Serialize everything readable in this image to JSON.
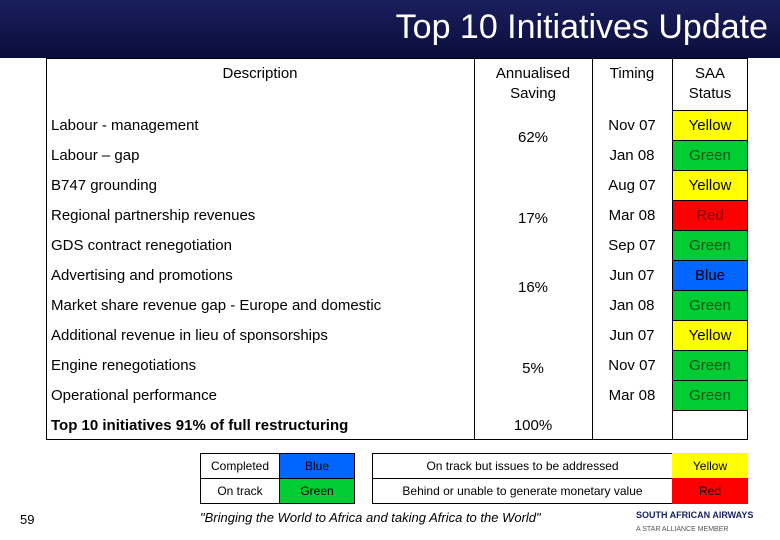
{
  "header": {
    "title": "Top 10 Initiatives Update"
  },
  "table": {
    "columns": [
      "Description",
      "Annualised Saving",
      "Timing",
      "SAA Status"
    ],
    "rows": [
      {
        "description": "Labour - management",
        "saving": "62%",
        "timing": "Nov 07",
        "status": "Yellow",
        "status_color": "#ffff00"
      },
      {
        "description": "Labour – gap",
        "timing": "Jan 08",
        "status": "Green",
        "status_color": "#00cc33"
      },
      {
        "description": "B747 grounding",
        "timing": "Aug 07",
        "status": "Yellow",
        "status_color": "#ffff00"
      },
      {
        "description": "Regional partnership revenues",
        "saving": "17%",
        "timing": "Mar 08",
        "status": "Red",
        "status_color": "#ff0000"
      },
      {
        "description": "GDS contract renegotiation",
        "timing": "Sep 07",
        "status": "Green",
        "status_color": "#00cc33"
      },
      {
        "description": "Advertising and promotions",
        "saving": "16%",
        "timing": "Jun 07",
        "status": "Blue",
        "status_color": "#0066ff"
      },
      {
        "description": "Market share revenue gap - Europe and domestic",
        "timing": "Jan 08",
        "status": "Green",
        "status_color": "#00cc33"
      },
      {
        "description": "Additional revenue in lieu of sponsorships",
        "timing": "Jun 07",
        "status": "Yellow",
        "status_color": "#ffff00"
      },
      {
        "description": "Engine renegotiations",
        "saving": "5%",
        "timing": "Nov 07",
        "status": "Green",
        "status_color": "#00cc33"
      },
      {
        "description": "Operational performance",
        "timing": "Mar 08",
        "status": "Green",
        "status_color": "#00cc33"
      }
    ],
    "total": {
      "description": "Top 10 initiatives 91% of full restructuring",
      "saving": "100%"
    }
  },
  "legend": {
    "left": [
      {
        "label": "Completed",
        "status": "Blue",
        "color": "#0066ff"
      },
      {
        "label": "On track",
        "status": "Green",
        "color": "#00cc33"
      }
    ],
    "right": [
      {
        "label": "On track but issues to be addressed",
        "status": "Yellow",
        "color": "#ffff00"
      },
      {
        "label": "Behind or unable to generate monetary value",
        "status": "Red",
        "color": "#ff0000"
      }
    ]
  },
  "footer": {
    "page": "59",
    "quote": "\"Bringing the World to Africa and taking Africa to the World\"",
    "brand": "SOUTH AFRICAN AIRWAYS",
    "tagline": "A STAR ALLIANCE MEMBER"
  }
}
